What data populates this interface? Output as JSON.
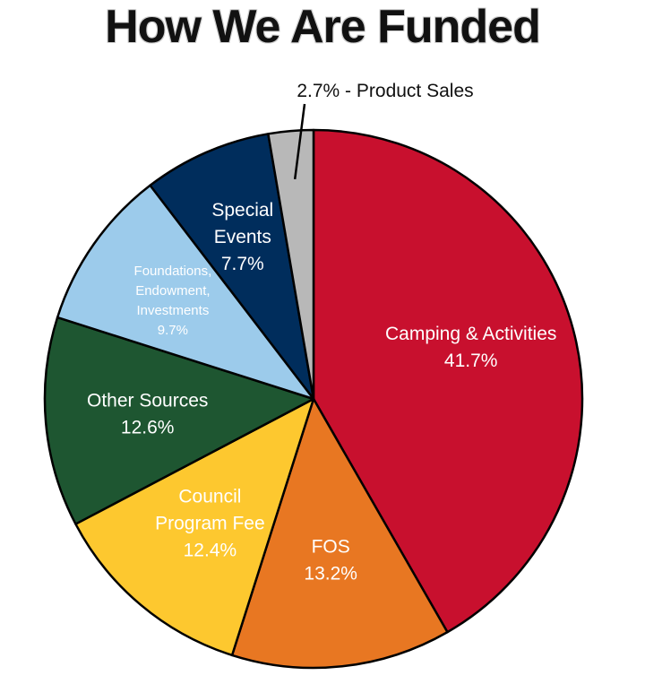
{
  "title": "How We Are Funded",
  "chart_data": {
    "type": "pie",
    "title": "How We Are Funded",
    "unit": "%",
    "slices": [
      {
        "label_lines": [
          "Camping & Activities",
          "41.7%"
        ],
        "value": 41.7,
        "color": "#c8102e",
        "text_color": "#ffffff"
      },
      {
        "label_lines": [
          "FOS",
          "13.2%"
        ],
        "value": 13.2,
        "color": "#e87722",
        "text_color": "#ffffff"
      },
      {
        "label_lines": [
          "Council",
          "Program Fee",
          "12.4%"
        ],
        "value": 12.4,
        "color": "#fdc82f",
        "text_color": "#ffffff"
      },
      {
        "label_lines": [
          "Other Sources",
          "12.6%"
        ],
        "value": 12.6,
        "color": "#1e5631",
        "text_color": "#ffffff"
      },
      {
        "label_lines": [
          "Foundations,",
          "Endowment,",
          "Investments",
          "9.7%"
        ],
        "value": 9.7,
        "color": "#9ccbeb",
        "text_color": "#ffffff"
      },
      {
        "label_lines": [
          "Special",
          "Events",
          "7.7%"
        ],
        "value": 7.7,
        "color": "#002d5c",
        "text_color": "#ffffff"
      },
      {
        "label_lines": [
          "2.7% - Product Sales"
        ],
        "value": 2.7,
        "color": "#b8b8b8",
        "text_color": "#111111"
      }
    ]
  }
}
